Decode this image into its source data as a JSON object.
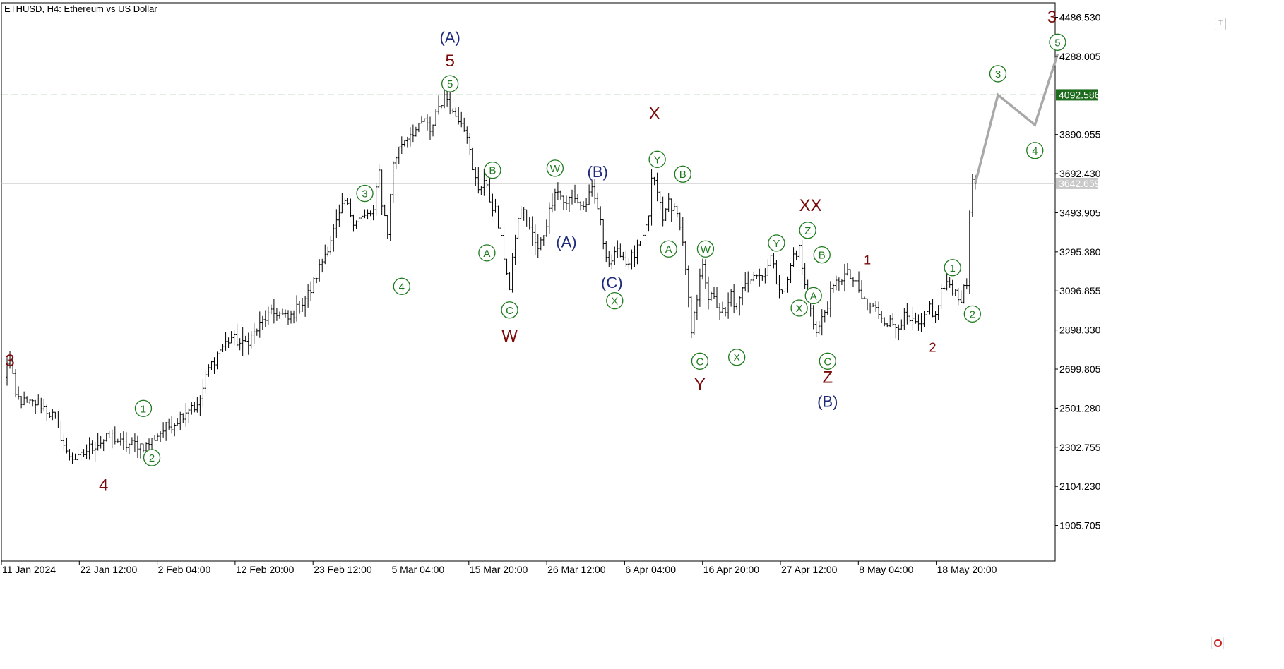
{
  "header": {
    "title": "ETHUSD, H4:  Ethereum vs US Dollar"
  },
  "colors": {
    "candle": "#000000",
    "dark_red": "#7b0a0a",
    "green": "#1d7a1d",
    "navy": "#1f2a7a",
    "dashed_level": "#1d6b1d",
    "current_line": "#b8b8b8",
    "projection": "#a8a8a8"
  },
  "chart_data": {
    "type": "line",
    "subtype": "ohlc-bars",
    "symbol": "ETHUSD",
    "timeframe": "H4",
    "title": "ETHUSD, H4:  Ethereum vs US Dollar",
    "x_tick_labels": [
      "11 Jan 2024",
      "22 Jan 12:00",
      "2 Feb 04:00",
      "12 Feb 20:00",
      "23 Feb 12:00",
      "5 Mar 04:00",
      "15 Mar 20:00",
      "26 Mar 12:00",
      "6 Apr 04:00",
      "16 Apr 20:00",
      "27 Apr 12:00",
      "8 May 04:00",
      "18 May 20:00"
    ],
    "y_tick_labels": [
      "4486.530",
      "4288.005",
      "4092.586",
      "3890.955",
      "3692.430",
      "3642.659",
      "3493.905",
      "3295.380",
      "3096.855",
      "2898.330",
      "2699.805",
      "2501.280",
      "2302.755",
      "2104.230",
      "1905.705"
    ],
    "y_ticks": [
      4486.53,
      4288.005,
      3890.955,
      3692.43,
      3493.905,
      3295.38,
      3096.855,
      2898.33,
      2699.805,
      2501.28,
      2302.755,
      2104.23,
      1905.705
    ],
    "ylim": [
      1725,
      4560
    ],
    "grid": false,
    "levels": {
      "dashed_resistance": 4092.586,
      "current_price": 3642.659
    },
    "price_anchors": [
      {
        "x": 0,
        "y": 2650
      },
      {
        "x": 1.5,
        "y": 2780
      },
      {
        "x": 4,
        "y": 2560
      },
      {
        "x": 8,
        "y": 2520
      },
      {
        "x": 12,
        "y": 2530
      },
      {
        "x": 18,
        "y": 2450
      },
      {
        "x": 22,
        "y": 2270
      },
      {
        "x": 26,
        "y": 2240
      },
      {
        "x": 30,
        "y": 2300
      },
      {
        "x": 34,
        "y": 2330
      },
      {
        "x": 38,
        "y": 2360
      },
      {
        "x": 42,
        "y": 2310
      },
      {
        "x": 46,
        "y": 2320
      },
      {
        "x": 50,
        "y": 2310
      },
      {
        "x": 55,
        "y": 2380
      },
      {
        "x": 60,
        "y": 2430
      },
      {
        "x": 63,
        "y": 2475
      },
      {
        "x": 66,
        "y": 2520
      },
      {
        "x": 68,
        "y": 2500
      },
      {
        "x": 72,
        "y": 2700
      },
      {
        "x": 76,
        "y": 2800
      },
      {
        "x": 80,
        "y": 2860
      },
      {
        "x": 84,
        "y": 2820
      },
      {
        "x": 88,
        "y": 2880
      },
      {
        "x": 92,
        "y": 2960
      },
      {
        "x": 96,
        "y": 2990
      },
      {
        "x": 100,
        "y": 2950
      },
      {
        "x": 104,
        "y": 3020
      },
      {
        "x": 108,
        "y": 3100
      },
      {
        "x": 112,
        "y": 3250
      },
      {
        "x": 116,
        "y": 3400
      },
      {
        "x": 120,
        "y": 3550
      },
      {
        "x": 123,
        "y": 3460
      },
      {
        "x": 127,
        "y": 3470
      },
      {
        "x": 130,
        "y": 3500
      },
      {
        "x": 132,
        "y": 3700
      },
      {
        "x": 133,
        "y": 3550
      },
      {
        "x": 135,
        "y": 3400
      },
      {
        "x": 137,
        "y": 3750
      },
      {
        "x": 140,
        "y": 3850
      },
      {
        "x": 143,
        "y": 3900
      },
      {
        "x": 146,
        "y": 3920
      },
      {
        "x": 148,
        "y": 3970
      },
      {
        "x": 150,
        "y": 3890
      },
      {
        "x": 152,
        "y": 4010
      },
      {
        "x": 154,
        "y": 4060
      },
      {
        "x": 156,
        "y": 4080
      },
      {
        "x": 158,
        "y": 4000
      },
      {
        "x": 161,
        "y": 3970
      },
      {
        "x": 163,
        "y": 3900
      },
      {
        "x": 165,
        "y": 3700
      },
      {
        "x": 167,
        "y": 3620
      },
      {
        "x": 169,
        "y": 3660
      },
      {
        "x": 171,
        "y": 3560
      },
      {
        "x": 173,
        "y": 3500
      },
      {
        "x": 175,
        "y": 3350
      },
      {
        "x": 177,
        "y": 3200
      },
      {
        "x": 178,
        "y": 3100
      },
      {
        "x": 180,
        "y": 3380
      },
      {
        "x": 182,
        "y": 3520
      },
      {
        "x": 184,
        "y": 3460
      },
      {
        "x": 186,
        "y": 3380
      },
      {
        "x": 188,
        "y": 3300
      },
      {
        "x": 190,
        "y": 3390
      },
      {
        "x": 192,
        "y": 3500
      },
      {
        "x": 194,
        "y": 3620
      },
      {
        "x": 196,
        "y": 3580
      },
      {
        "x": 198,
        "y": 3530
      },
      {
        "x": 200,
        "y": 3600
      },
      {
        "x": 202,
        "y": 3550
      },
      {
        "x": 204,
        "y": 3520
      },
      {
        "x": 207,
        "y": 3600
      },
      {
        "x": 209,
        "y": 3520
      },
      {
        "x": 211,
        "y": 3350
      },
      {
        "x": 213,
        "y": 3240
      },
      {
        "x": 215,
        "y": 3270
      },
      {
        "x": 217,
        "y": 3300
      },
      {
        "x": 219,
        "y": 3240
      },
      {
        "x": 222,
        "y": 3280
      },
      {
        "x": 225,
        "y": 3350
      },
      {
        "x": 227,
        "y": 3480
      },
      {
        "x": 228,
        "y": 3660
      },
      {
        "x": 230,
        "y": 3610
      },
      {
        "x": 232,
        "y": 3450
      },
      {
        "x": 234,
        "y": 3560
      },
      {
        "x": 236,
        "y": 3500
      },
      {
        "x": 238,
        "y": 3450
      },
      {
        "x": 240,
        "y": 3220
      },
      {
        "x": 242,
        "y": 2870
      },
      {
        "x": 244,
        "y": 3050
      },
      {
        "x": 246,
        "y": 3250
      },
      {
        "x": 248,
        "y": 3070
      },
      {
        "x": 250,
        "y": 3050
      },
      {
        "x": 252,
        "y": 3000
      },
      {
        "x": 254,
        "y": 2970
      },
      {
        "x": 256,
        "y": 3080
      },
      {
        "x": 258,
        "y": 2990
      },
      {
        "x": 261,
        "y": 3150
      },
      {
        "x": 264,
        "y": 3190
      },
      {
        "x": 267,
        "y": 3170
      },
      {
        "x": 270,
        "y": 3270
      },
      {
        "x": 272,
        "y": 3150
      },
      {
        "x": 275,
        "y": 3090
      },
      {
        "x": 278,
        "y": 3280
      },
      {
        "x": 280,
        "y": 3310
      },
      {
        "x": 282,
        "y": 3120
      },
      {
        "x": 284,
        "y": 3020
      },
      {
        "x": 286,
        "y": 2880
      },
      {
        "x": 288,
        "y": 2950
      },
      {
        "x": 291,
        "y": 3080
      },
      {
        "x": 294,
        "y": 3160
      },
      {
        "x": 297,
        "y": 3180
      },
      {
        "x": 299,
        "y": 3150
      },
      {
        "x": 302,
        "y": 3060
      },
      {
        "x": 305,
        "y": 3020
      },
      {
        "x": 308,
        "y": 2990
      },
      {
        "x": 311,
        "y": 2940
      },
      {
        "x": 314,
        "y": 2920
      },
      {
        "x": 317,
        "y": 2960
      },
      {
        "x": 320,
        "y": 2930
      },
      {
        "x": 323,
        "y": 2910
      },
      {
        "x": 326,
        "y": 3020
      },
      {
        "x": 328,
        "y": 2960
      },
      {
        "x": 330,
        "y": 3100
      },
      {
        "x": 333,
        "y": 3130
      },
      {
        "x": 335,
        "y": 3090
      },
      {
        "x": 337,
        "y": 3060
      },
      {
        "x": 339,
        "y": 3130
      },
      {
        "x": 340,
        "y": 3500
      },
      {
        "x": 341,
        "y": 3690
      },
      {
        "x": 342,
        "y": 3642.659
      }
    ],
    "projection": [
      {
        "x": 342,
        "y": 3642.659
      },
      {
        "x": 350,
        "y": 4092.586
      },
      {
        "x": 363,
        "y": 3940
      },
      {
        "x": 371,
        "y": 4300
      }
    ],
    "wave_labels": [
      {
        "t": "3",
        "x": 2,
        "y": 2745,
        "c": "dark_red",
        "s": "plain",
        "size": 24
      },
      {
        "t": "4",
        "x": 35,
        "y": 2112,
        "c": "dark_red",
        "s": "plain",
        "size": 24
      },
      {
        "t": "1",
        "x": 49,
        "y": 2500,
        "c": "green",
        "s": "circle"
      },
      {
        "t": "2",
        "x": 52,
        "y": 2250,
        "c": "green",
        "s": "circle"
      },
      {
        "t": "3",
        "x": 127,
        "y": 3592,
        "c": "green",
        "s": "circle"
      },
      {
        "t": "4",
        "x": 140,
        "y": 3120,
        "c": "green",
        "s": "circle"
      },
      {
        "t": "5",
        "x": 157,
        "y": 4149,
        "c": "green",
        "s": "circle"
      },
      {
        "t": "5",
        "x": 157,
        "y": 4268,
        "c": "dark_red",
        "s": "plain",
        "size": 24
      },
      {
        "t": "(A)",
        "x": 157,
        "y": 4385,
        "c": "navy",
        "s": "plain",
        "size": 22
      },
      {
        "t": "B",
        "x": 172,
        "y": 3710,
        "c": "green",
        "s": "circle"
      },
      {
        "t": "A",
        "x": 170,
        "y": 3290,
        "c": "green",
        "s": "circle"
      },
      {
        "t": "C",
        "x": 178,
        "y": 3000,
        "c": "green",
        "s": "circle"
      },
      {
        "t": "W",
        "x": 178,
        "y": 2870,
        "c": "dark_red",
        "s": "plain",
        "size": 24
      },
      {
        "t": "W",
        "x": 194,
        "y": 3720,
        "c": "green",
        "s": "circle"
      },
      {
        "t": "(A)",
        "x": 198,
        "y": 3345,
        "c": "navy",
        "s": "plain",
        "size": 22
      },
      {
        "t": "(B)",
        "x": 209,
        "y": 3702,
        "c": "navy",
        "s": "plain",
        "size": 22
      },
      {
        "t": "(C)",
        "x": 214,
        "y": 3140,
        "c": "navy",
        "s": "plain",
        "size": 22
      },
      {
        "t": "X",
        "x": 215,
        "y": 3047,
        "c": "green",
        "s": "circle"
      },
      {
        "t": "X",
        "x": 229,
        "y": 4000,
        "c": "dark_red",
        "s": "plain",
        "size": 24
      },
      {
        "t": "Y",
        "x": 230,
        "y": 3765,
        "c": "green",
        "s": "circle"
      },
      {
        "t": "B",
        "x": 239,
        "y": 3690,
        "c": "green",
        "s": "circle"
      },
      {
        "t": "A",
        "x": 234,
        "y": 3310,
        "c": "green",
        "s": "circle"
      },
      {
        "t": "W",
        "x": 247,
        "y": 3310,
        "c": "green",
        "s": "circle"
      },
      {
        "t": "C",
        "x": 245,
        "y": 2740,
        "c": "green",
        "s": "circle"
      },
      {
        "t": "Y",
        "x": 245,
        "y": 2625,
        "c": "dark_red",
        "s": "plain",
        "size": 24
      },
      {
        "t": "X",
        "x": 258,
        "y": 2760,
        "c": "green",
        "s": "circle"
      },
      {
        "t": "Y",
        "x": 272,
        "y": 3340,
        "c": "green",
        "s": "circle"
      },
      {
        "t": "XX",
        "x": 284,
        "y": 3533,
        "c": "dark_red",
        "s": "plain",
        "size": 24
      },
      {
        "t": "Z",
        "x": 283,
        "y": 3405,
        "c": "green",
        "s": "circle"
      },
      {
        "t": "B",
        "x": 288,
        "y": 3280,
        "c": "green",
        "s": "circle"
      },
      {
        "t": "A",
        "x": 285,
        "y": 3073,
        "c": "green",
        "s": "circle"
      },
      {
        "t": "X",
        "x": 280,
        "y": 3010,
        "c": "green",
        "s": "circle"
      },
      {
        "t": "C",
        "x": 290,
        "y": 2740,
        "c": "green",
        "s": "circle"
      },
      {
        "t": "Z",
        "x": 290,
        "y": 2660,
        "c": "dark_red",
        "s": "plain",
        "size": 24
      },
      {
        "t": "(B)",
        "x": 290,
        "y": 2536,
        "c": "navy",
        "s": "plain",
        "size": 22
      },
      {
        "t": "1",
        "x": 304,
        "y": 3255,
        "c": "dark_red",
        "s": "plain",
        "size": 18
      },
      {
        "t": "2",
        "x": 327,
        "y": 2810,
        "c": "dark_red",
        "s": "plain",
        "size": 18
      },
      {
        "t": "1",
        "x": 334,
        "y": 3215,
        "c": "green",
        "s": "circle"
      },
      {
        "t": "2",
        "x": 341,
        "y": 2980,
        "c": "green",
        "s": "circle"
      },
      {
        "t": "3",
        "x": 350,
        "y": 4200,
        "c": "green",
        "s": "circle"
      },
      {
        "t": "4",
        "x": 363,
        "y": 3810,
        "c": "green",
        "s": "circle"
      },
      {
        "t": "5",
        "x": 371,
        "y": 4360,
        "c": "green",
        "s": "circle"
      },
      {
        "t": "3",
        "x": 369,
        "y": 4490,
        "c": "dark_red",
        "s": "plain",
        "size": 24
      }
    ]
  }
}
